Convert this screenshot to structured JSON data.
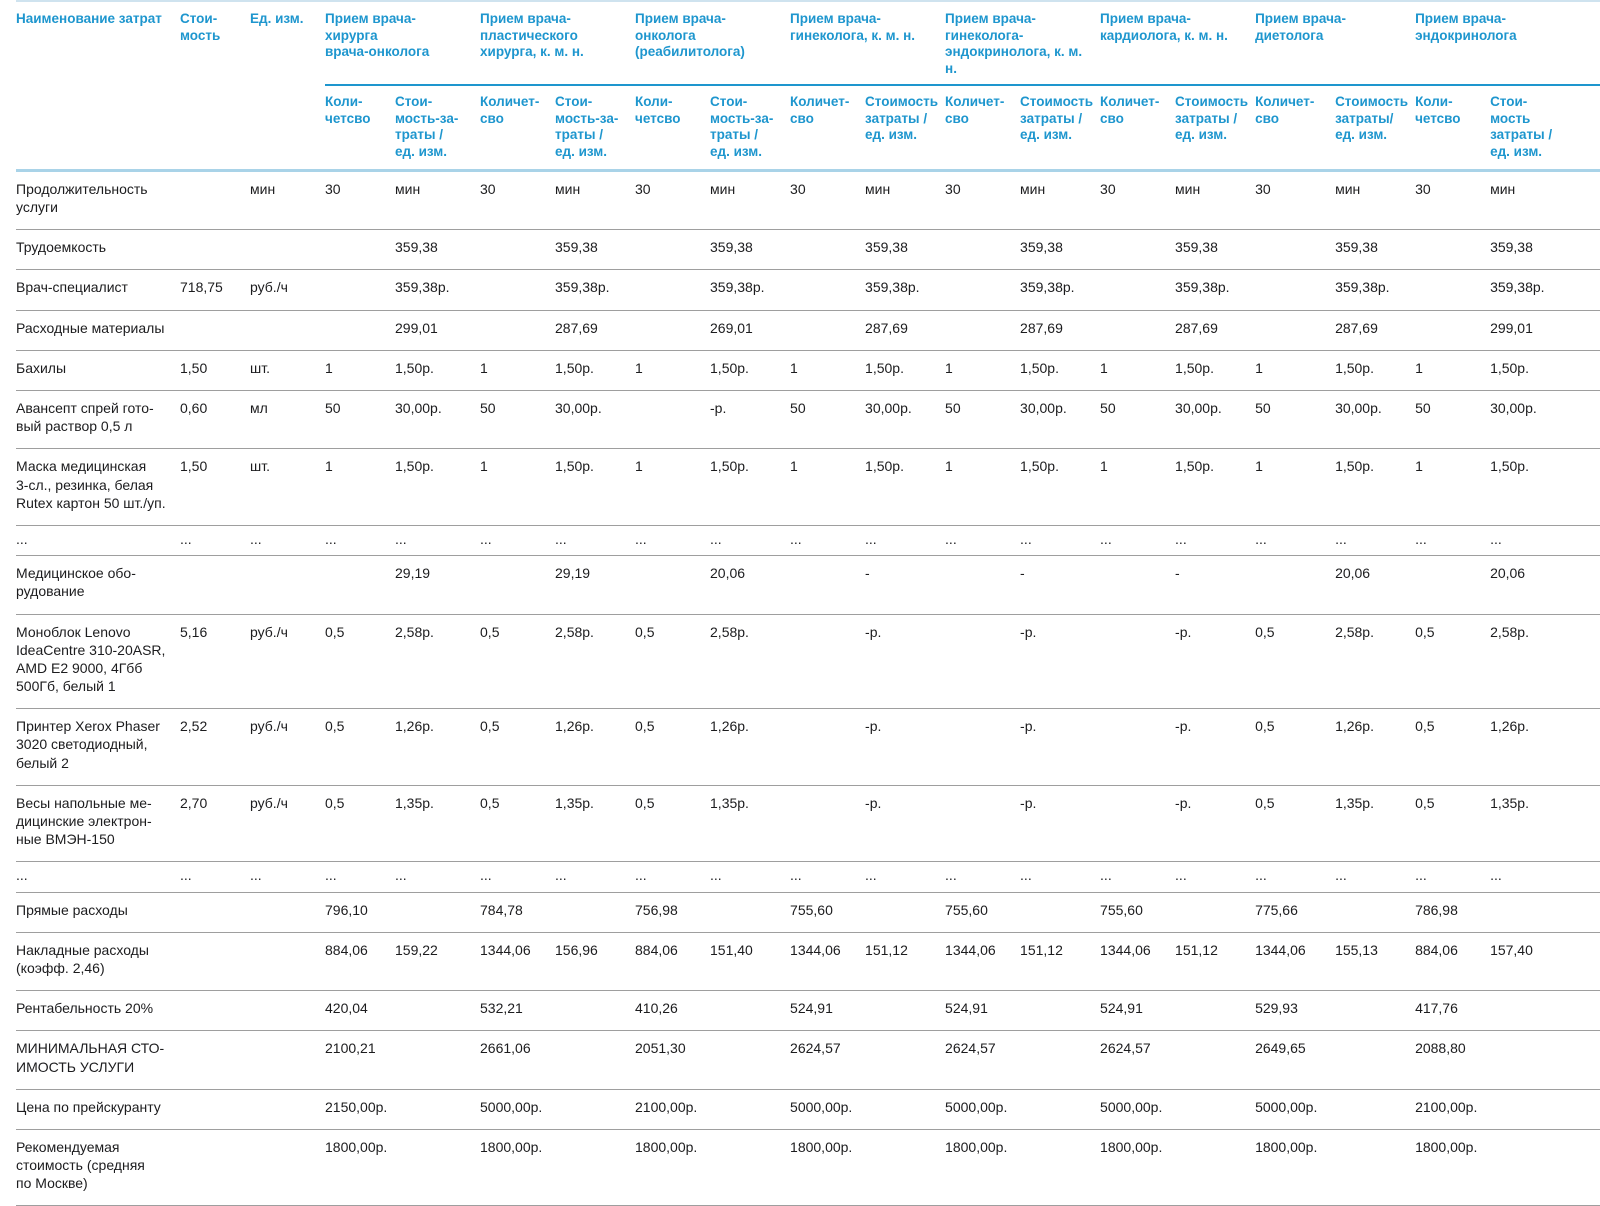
{
  "colors": {
    "header_text": "#1e96ce",
    "body_text": "#1c1c1e",
    "group_rule": "#1e96ce",
    "header_rule": "#a9d3e8",
    "row_rule": "#9e9e9e",
    "top_rule": "#cfe3ef"
  },
  "table": {
    "fixed_headers": [
      "Наименование затрат",
      "Стои-\nмость",
      "Ед. изм."
    ],
    "groups": [
      {
        "title": "Прием врача-\nхирурга\nврача-онколога",
        "qty_label": "Коли-\nчетсво",
        "cost_label": "Стои-\nмость-за-\nтраты /\nед. изм."
      },
      {
        "title": "Прием врача-\nпластического\nхирурга, к. м. н.",
        "qty_label": "Количет-\nсво",
        "cost_label": "Стои-\nмость-за-\nтраты /\nед. изм."
      },
      {
        "title": "Прием врача-\nонколога\n(реабилитолога)",
        "qty_label": "Коли-\nчетсво",
        "cost_label": "Стои-\nмость-за-\nтраты /\nед. изм."
      },
      {
        "title": "Прием врача-\nгинеколога, к. м. н.",
        "qty_label": "Количет-\nсво",
        "cost_label": "Стоимость\nзатраты /\nед. изм."
      },
      {
        "title": "Прием врача-\nгинеколога-\nэндокринолога, к. м. н.",
        "qty_label": "Количет-\nсво",
        "cost_label": "Стоимость\nзатраты /\nед. изм."
      },
      {
        "title": "Прием врача-\nкардиолога, к. м. н.",
        "qty_label": "Количет-\nсво",
        "cost_label": "Стоимость\nзатраты /\nед. изм."
      },
      {
        "title": "Прием врача-\nдиетолога",
        "qty_label": "Количет-\nсво",
        "cost_label": "Стоимость\nзатраты/\nед. изм."
      },
      {
        "title": "Прием врача-\nэндокринолога",
        "qty_label": "Коли-\nчетсво",
        "cost_label": "Стои-\nмость\nзатраты /\nед. изм."
      }
    ],
    "rows": [
      {
        "label": "Продолжительность\nуслуги",
        "cost": "",
        "unit": "мин",
        "cells": [
          "30",
          "мин",
          "30",
          "мин",
          "30",
          "мин",
          "30",
          "мин",
          "30",
          "мин",
          "30",
          "мин",
          "30",
          "мин",
          "30",
          "мин"
        ]
      },
      {
        "label": "Трудоемкость",
        "cost": "",
        "unit": "",
        "cells": [
          "",
          "359,38",
          "",
          "359,38",
          "",
          "359,38",
          "",
          "359,38",
          "",
          "359,38",
          "",
          "359,38",
          "",
          "359,38",
          "",
          "359,38"
        ]
      },
      {
        "label": "Врач-специалист",
        "cost": "718,75",
        "unit": "руб./ч",
        "cells": [
          "",
          "359,38р.",
          "",
          "359,38р.",
          "",
          "359,38р.",
          "",
          "359,38р.",
          "",
          "359,38р.",
          "",
          "359,38р.",
          "",
          "359,38р.",
          "",
          "359,38р."
        ]
      },
      {
        "label": "Расходные материалы",
        "cost": "",
        "unit": "",
        "cells": [
          "",
          "299,01",
          "",
          "287,69",
          "",
          "269,01",
          "",
          "287,69",
          "",
          "287,69",
          "",
          "287,69",
          "",
          "287,69",
          "",
          "299,01"
        ]
      },
      {
        "label": "Бахилы",
        "cost": "1,50",
        "unit": "шт.",
        "cells": [
          "1",
          "1,50р.",
          "1",
          "1,50р.",
          "1",
          "1,50р.",
          "1",
          "1,50р.",
          "1",
          "1,50р.",
          "1",
          "1,50р.",
          "1",
          "1,50р.",
          "1",
          "1,50р."
        ]
      },
      {
        "label": "Авансепт спрей гото-\nвый раствор 0,5 л",
        "cost": "0,60",
        "unit": "мл",
        "cells": [
          "50",
          "30,00р.",
          "50",
          "30,00р.",
          "",
          "-р.",
          "50",
          "30,00р.",
          "50",
          "30,00р.",
          "50",
          "30,00р.",
          "50",
          "30,00р.",
          "50",
          "30,00р."
        ]
      },
      {
        "label": "Маска медицинская\n3-сл., резинка, белая\nRutex картон 50 шт./уп.",
        "cost": "1,50",
        "unit": "шт.",
        "cells": [
          "1",
          "1,50р.",
          "1",
          "1,50р.",
          "1",
          "1,50р.",
          "1",
          "1,50р.",
          "1",
          "1,50р.",
          "1",
          "1,50р.",
          "1",
          "1,50р.",
          "1",
          "1,50р."
        ]
      },
      {
        "label": "...",
        "cost": "...",
        "unit": "...",
        "dots": true,
        "cells": [
          "...",
          "...",
          "...",
          "...",
          "...",
          "...",
          "...",
          "...",
          "...",
          "...",
          "...",
          "...",
          "...",
          "...",
          "...",
          "..."
        ]
      },
      {
        "label": "Медицинское обо-\nрудование",
        "cost": "",
        "unit": "",
        "cells": [
          "",
          "29,19",
          "",
          "29,19",
          "",
          "20,06",
          "",
          "-",
          "",
          "-",
          "",
          "-",
          "",
          "20,06",
          "",
          "20,06"
        ]
      },
      {
        "label": "Моноблок Lenovo\nIdeaCentre 310-20ASR,\nAMD E2 9000, 4Гбб\n500Гб, белый 1",
        "cost": "5,16",
        "unit": "руб./ч",
        "cells": [
          "0,5",
          "2,58р.",
          "0,5",
          "2,58р.",
          "0,5",
          "2,58р.",
          "",
          "-р.",
          "",
          "-р.",
          "",
          "-р.",
          "0,5",
          "2,58р.",
          "0,5",
          "2,58р."
        ]
      },
      {
        "label": "Принтер Xerox Phaser\n3020 светодиодный,\nбелый 2",
        "cost": "2,52",
        "unit": "руб./ч",
        "cells": [
          "0,5",
          "1,26р.",
          "0,5",
          "1,26р.",
          "0,5",
          "1,26р.",
          "",
          "-р.",
          "",
          "-р.",
          "",
          "-р.",
          "0,5",
          "1,26р.",
          "0,5",
          "1,26р."
        ]
      },
      {
        "label": "Весы напольные ме-\nдицинские электрон-\nные ВМЭН-150",
        "cost": "2,70",
        "unit": "руб./ч",
        "cells": [
          "0,5",
          "1,35р.",
          "0,5",
          "1,35р.",
          "0,5",
          "1,35р.",
          "",
          "-р.",
          "",
          "-р.",
          "",
          "-р.",
          "0,5",
          "1,35р.",
          "0,5",
          "1,35р."
        ]
      },
      {
        "label": "...",
        "cost": "...",
        "unit": "...",
        "dots": true,
        "cells": [
          "...",
          "...",
          "...",
          "...",
          "...",
          "...",
          "...",
          "...",
          "...",
          "...",
          "...",
          "...",
          "...",
          "...",
          "...",
          "..."
        ]
      },
      {
        "label": "Прямые расходы",
        "cost": "",
        "unit": "",
        "cells": [
          "796,10",
          "",
          "784,78",
          "",
          "756,98",
          "",
          "755,60",
          "",
          "755,60",
          "",
          "755,60",
          "",
          "775,66",
          "",
          "786,98",
          ""
        ]
      },
      {
        "label": "Накладные расходы\n(коэфф. 2,46)",
        "cost": "",
        "unit": "",
        "cells": [
          "884,06",
          "159,22",
          "1344,06",
          "156,96",
          "884,06",
          "151,40",
          "1344,06",
          "151,12",
          "1344,06",
          "151,12",
          "1344,06",
          "151,12",
          "1344,06",
          "155,13",
          "884,06",
          "157,40"
        ]
      },
      {
        "label": "Рентабельность 20%",
        "cost": "",
        "unit": "",
        "cells": [
          "420,04",
          "",
          "532,21",
          "",
          "410,26",
          "",
          "524,91",
          "",
          "524,91",
          "",
          "524,91",
          "",
          "529,93",
          "",
          "417,76",
          ""
        ]
      },
      {
        "label": "МИНИМАЛЬНАЯ СТО-\nИМОСТЬ УСЛУГИ",
        "cost": "",
        "unit": "",
        "cells": [
          "2100,21",
          "",
          "2661,06",
          "",
          "2051,30",
          "",
          "2624,57",
          "",
          "2624,57",
          "",
          "2624,57",
          "",
          "2649,65",
          "",
          "2088,80",
          ""
        ]
      },
      {
        "label": "Цена по прейскуранту",
        "cost": "",
        "unit": "",
        "cells": [
          "2150,00р.",
          "",
          "5000,00р.",
          "",
          "2100,00р.",
          "",
          "5000,00р.",
          "",
          "5000,00р.",
          "",
          "5000,00р.",
          "",
          "5000,00р.",
          "",
          "2100,00р.",
          ""
        ]
      },
      {
        "label": "Рекомендуемая\nстоимость (средняя\nпо Москве)",
        "cost": "",
        "unit": "",
        "cells": [
          "1800,00р.",
          "",
          "1800,00р.",
          "",
          "1800,00р.",
          "",
          "1800,00р.",
          "",
          "1800,00р.",
          "",
          "1800,00р.",
          "",
          "1800,00р.",
          "",
          "1800,00р.",
          ""
        ]
      }
    ]
  }
}
